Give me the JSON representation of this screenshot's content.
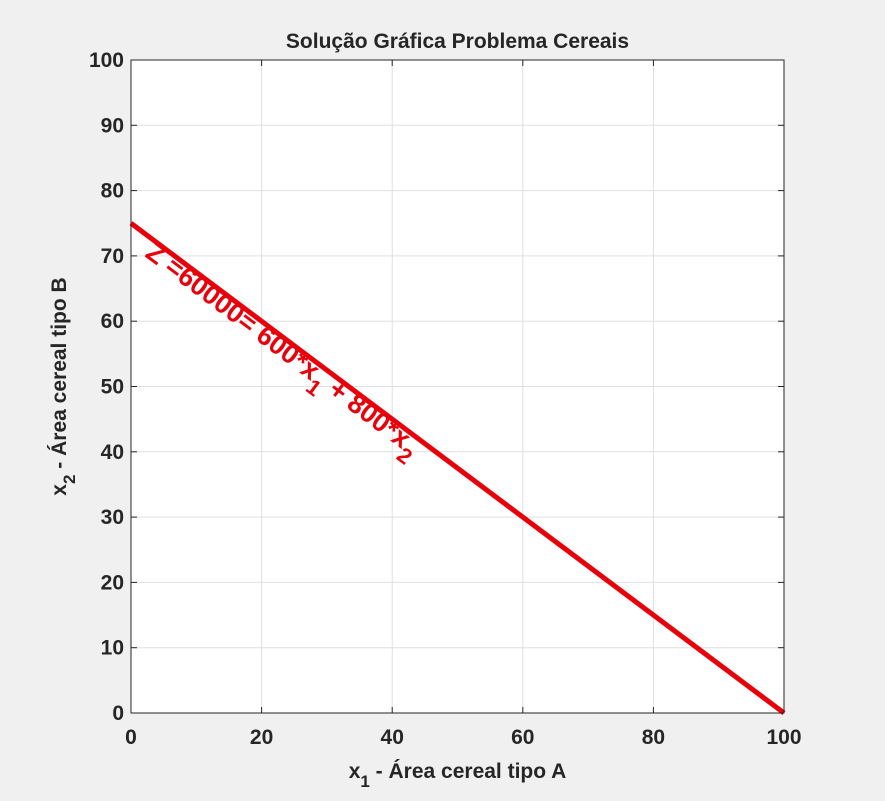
{
  "chart_data": {
    "type": "line",
    "title": "Solução Gráfica Problema Cereais",
    "xlabel": {
      "base": "x",
      "sub": "1",
      "rest": " - Área cereal tipo A"
    },
    "ylabel": {
      "base": "x",
      "sub": "2",
      "rest": " - Área cereal tipo B"
    },
    "xlim": [
      0,
      100
    ],
    "ylim": [
      0,
      100
    ],
    "xticks": [
      0,
      20,
      40,
      60,
      80,
      100
    ],
    "yticks": [
      0,
      10,
      20,
      30,
      40,
      50,
      60,
      70,
      80,
      90,
      100
    ],
    "xtick_labels": [
      "0",
      "20",
      "40",
      "60",
      "80",
      "100"
    ],
    "ytick_labels": [
      "0",
      "10",
      "20",
      "30",
      "40",
      "50",
      "60",
      "70",
      "80",
      "90",
      "100"
    ],
    "grid": true,
    "series": [
      {
        "x": [
          0,
          100
        ],
        "y": [
          75,
          0
        ],
        "color": "#e8000b"
      }
    ],
    "annotation": {
      "x": 2,
      "y": 70,
      "p1": "Z =60000= 600*x",
      "s1": "1",
      "p2": " + 800*x",
      "s2": "2",
      "color": "#e8000b"
    }
  }
}
